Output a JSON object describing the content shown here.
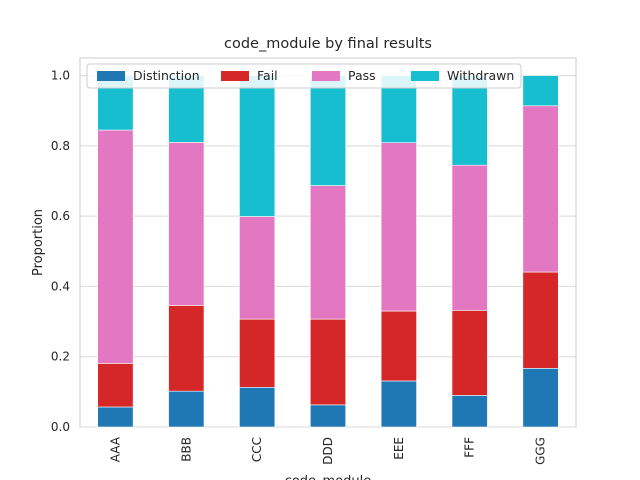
{
  "chart_data": {
    "type": "bar",
    "stacked": true,
    "title": "code_module by final results",
    "xlabel": "code_module",
    "ylabel": "Proportion",
    "ylim": [
      0,
      1.05
    ],
    "yticks": [
      "0.0",
      "0.2",
      "0.4",
      "0.6",
      "0.8",
      "1.0"
    ],
    "grid": true,
    "legend_position": "top",
    "categories": [
      "AAA",
      "BBB",
      "CCC",
      "DDD",
      "EEE",
      "FFF",
      "GGG"
    ],
    "series": [
      {
        "name": "Distinction",
        "color": "#1f77b4",
        "values": [
          0.057,
          0.102,
          0.113,
          0.063,
          0.131,
          0.09,
          0.167
        ]
      },
      {
        "name": "Fail",
        "color": "#d62728",
        "values": [
          0.124,
          0.244,
          0.194,
          0.244,
          0.199,
          0.242,
          0.274
        ]
      },
      {
        "name": "Pass",
        "color": "#e377c2",
        "values": [
          0.664,
          0.464,
          0.292,
          0.38,
          0.479,
          0.413,
          0.473
        ]
      },
      {
        "name": "Withdrawn",
        "color": "#17becf",
        "values": [
          0.155,
          0.19,
          0.401,
          0.313,
          0.191,
          0.255,
          0.086
        ]
      }
    ]
  }
}
